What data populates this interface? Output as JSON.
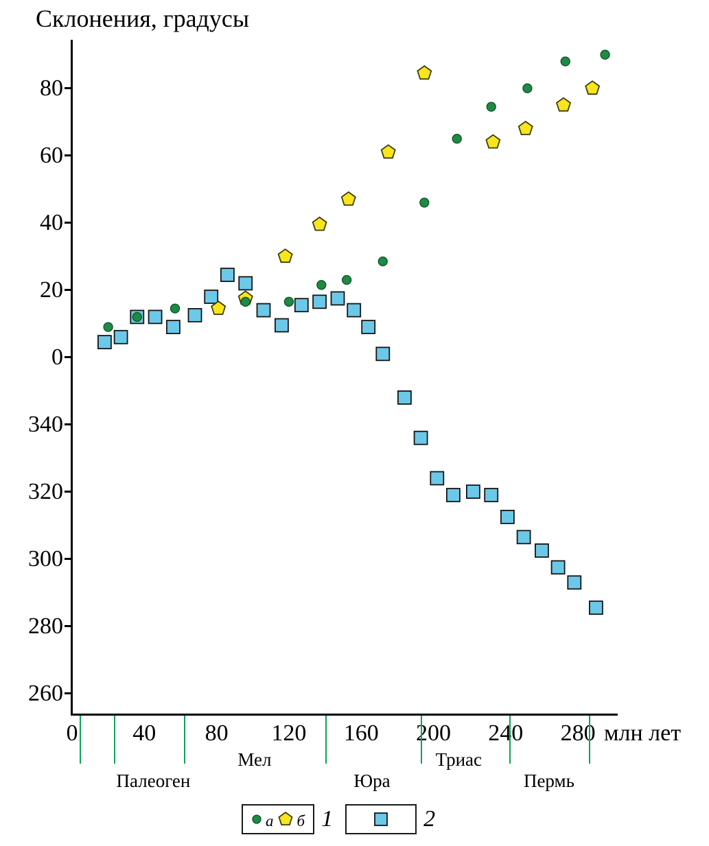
{
  "legend": {
    "group1": {
      "circle_label": "а",
      "pentagon_label": "б",
      "number": "1"
    },
    "group2": {
      "number": "2"
    }
  },
  "geologic_scale": {
    "boundaries_ma": [
      4,
      23,
      62,
      140,
      193,
      242,
      286
    ],
    "periods": [
      {
        "label": "Палеоген",
        "center_ma": 45,
        "row": "lower"
      },
      {
        "label": "Мел",
        "center_ma": 101,
        "row": "upper"
      },
      {
        "label": "Юра",
        "center_ma": 166,
        "row": "lower"
      },
      {
        "label": "Триас",
        "center_ma": 214,
        "row": "upper"
      },
      {
        "label": "Пермь",
        "center_ma": 264,
        "row": "lower"
      }
    ]
  },
  "colors": {
    "axis": "#000000",
    "boundary": "#0ca355",
    "circle_fill": "#1e8a44",
    "circle_stroke": "#0d5226",
    "pentagon_fill": "#f8e51c",
    "pentagon_stroke": "#3c3c10",
    "square_fill": "#6cc8e8",
    "square_stroke": "#151515"
  },
  "chart_data": {
    "type": "scatter",
    "title": "Склонения, градусы",
    "xlabel": "млн лет",
    "ylabel": "Склонения, градусы",
    "xlim": [
      0,
      302
    ],
    "ylim": [
      -106,
      93
    ],
    "grid": false,
    "y_wrap_note": "Declination axis wraps through 0: labels 340,320,300,280,260 plotted as -20,-40,-60,-80,-100",
    "x_ticks": [
      {
        "label": "0",
        "value": 0
      },
      {
        "label": "40",
        "value": 40
      },
      {
        "label": "80",
        "value": 80
      },
      {
        "label": "120",
        "value": 120
      },
      {
        "label": "160",
        "value": 160
      },
      {
        "label": "200",
        "value": 200
      },
      {
        "label": "240",
        "value": 240
      },
      {
        "label": "280",
        "value": 280
      }
    ],
    "y_ticks": [
      {
        "label": "80",
        "value": 80
      },
      {
        "label": "60",
        "value": 60
      },
      {
        "label": "40",
        "value": 40
      },
      {
        "label": "20",
        "value": 20
      },
      {
        "label": "0",
        "value": 0
      },
      {
        "label": "340",
        "value": -20
      },
      {
        "label": "320",
        "value": -40
      },
      {
        "label": "300",
        "value": -60
      },
      {
        "label": "280",
        "value": -80
      },
      {
        "label": "260",
        "value": -100
      }
    ],
    "series": [
      {
        "name": "1а",
        "marker": "circle",
        "legend_label": "а",
        "points": [
          [
            20,
            9
          ],
          [
            36,
            12
          ],
          [
            57,
            14.5
          ],
          [
            96,
            16.5
          ],
          [
            120,
            16.5
          ],
          [
            138,
            21.5
          ],
          [
            152,
            23
          ],
          [
            172,
            28.5
          ],
          [
            195,
            46
          ],
          [
            213,
            65
          ],
          [
            232,
            74.5
          ],
          [
            252,
            80
          ],
          [
            273,
            88
          ],
          [
            295,
            90
          ]
        ]
      },
      {
        "name": "1б",
        "marker": "pentagon",
        "legend_label": "б",
        "points": [
          [
            81,
            14.5
          ],
          [
            96,
            17.5
          ],
          [
            118,
            30
          ],
          [
            137,
            39.5
          ],
          [
            153,
            47
          ],
          [
            175,
            61
          ],
          [
            195,
            84.5
          ],
          [
            233,
            64
          ],
          [
            251,
            68
          ],
          [
            272,
            75
          ],
          [
            288,
            80
          ]
        ]
      },
      {
        "name": "2",
        "marker": "square",
        "legend_label": "2",
        "points": [
          [
            18,
            4.5
          ],
          [
            27,
            6
          ],
          [
            36,
            12
          ],
          [
            46,
            12
          ],
          [
            56,
            9
          ],
          [
            68,
            12.5
          ],
          [
            77,
            18
          ],
          [
            86,
            24.5
          ],
          [
            96,
            22
          ],
          [
            106,
            14
          ],
          [
            116,
            9.5
          ],
          [
            127,
            15.5
          ],
          [
            137,
            16.5
          ],
          [
            147,
            17.5
          ],
          [
            156,
            14
          ],
          [
            164,
            9
          ],
          [
            172,
            1
          ],
          [
            184,
            348
          ],
          [
            193,
            336
          ],
          [
            202,
            324
          ],
          [
            211,
            319
          ],
          [
            222,
            320
          ],
          [
            232,
            319
          ],
          [
            241,
            312.5
          ],
          [
            250,
            306.5
          ],
          [
            260,
            302.5
          ],
          [
            269,
            297.5
          ],
          [
            278,
            293
          ],
          [
            290,
            285.5
          ]
        ]
      }
    ]
  }
}
